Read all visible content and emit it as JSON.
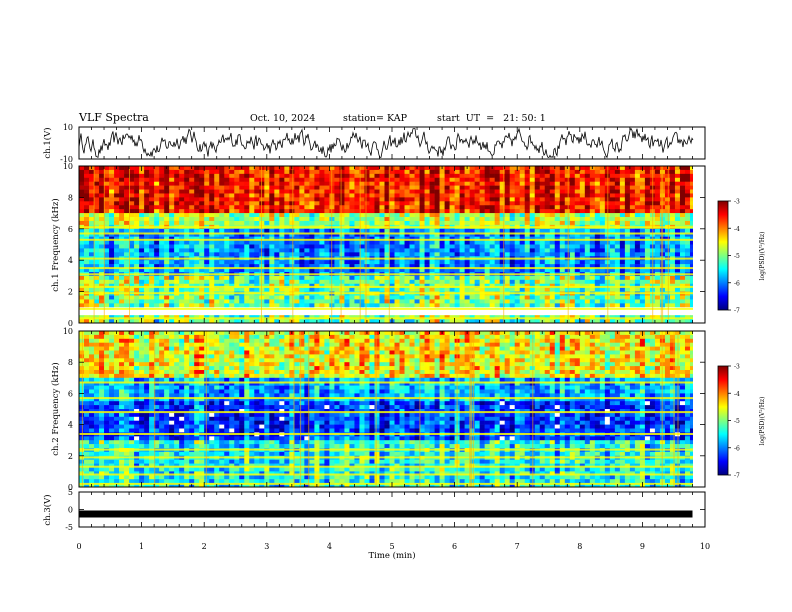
{
  "header": {
    "title": "VLF Spectra",
    "date": "Oct. 10, 2024",
    "station": "station= KAP",
    "start": "start  UT  =   21: 50: 1"
  },
  "chart_data": [
    {
      "type": "line",
      "name": "ch1-waveform",
      "ylabel": "ch.1(V)",
      "ylim": [
        -10,
        10
      ],
      "yticks": [
        10,
        -10
      ],
      "xlim": [
        0,
        10
      ],
      "description_series": "voltage waveform fluctuating roughly between -8 and 9 V"
    },
    {
      "type": "heatmap",
      "name": "ch1-spectrogram",
      "ylabel": "ch.1 Frequency (kHz)",
      "ylim": [
        0,
        10
      ],
      "yticks": [
        0,
        2,
        4,
        6,
        8,
        10
      ],
      "xlim": [
        0,
        10
      ],
      "colorbar": {
        "label": "log(PSD)(V²/Hz)",
        "ticks": [
          -3,
          -4,
          -5,
          -6,
          -7
        ],
        "range": [
          -7,
          -3
        ]
      },
      "bands_khz": [
        0.3,
        0.9,
        1.9,
        2.3,
        3.1,
        3.5,
        4.1,
        5.3,
        5.7,
        6.1
      ]
    },
    {
      "type": "heatmap",
      "name": "ch2-spectrogram",
      "ylabel": "ch.2 Frequency (kHz)",
      "ylim": [
        0,
        10
      ],
      "yticks": [
        0,
        2,
        4,
        6,
        8,
        10
      ],
      "xlim": [
        0,
        10
      ],
      "colorbar": {
        "label": "log(PSD)(V²/Hz)",
        "ticks": [
          -3,
          -4,
          -5,
          -6,
          -7
        ],
        "range": [
          -7,
          -3
        ]
      },
      "bands_khz": [
        0.2,
        0.8,
        1.3,
        1.9,
        2.4,
        3.4,
        4.8,
        5.7,
        6.7
      ]
    },
    {
      "type": "line",
      "name": "ch3-trace",
      "ylabel": "ch.3(V)",
      "ylim": [
        -5,
        5
      ],
      "yticks": [
        5,
        0,
        -5
      ],
      "xlim": [
        0,
        10
      ],
      "values_x": [
        0,
        9.8
      ],
      "values_y": [
        -1.3,
        -1.3
      ]
    }
  ],
  "xaxis": {
    "label": "Time  (min)",
    "ticks": [
      0,
      1,
      2,
      3,
      4,
      5,
      6,
      7,
      8,
      9,
      10
    ]
  },
  "colors": {
    "jet": [
      "#00007f",
      "#0000ff",
      "#007fff",
      "#00ffff",
      "#7fff7f",
      "#ffff00",
      "#ff7f00",
      "#ff0000",
      "#7f0000"
    ]
  }
}
